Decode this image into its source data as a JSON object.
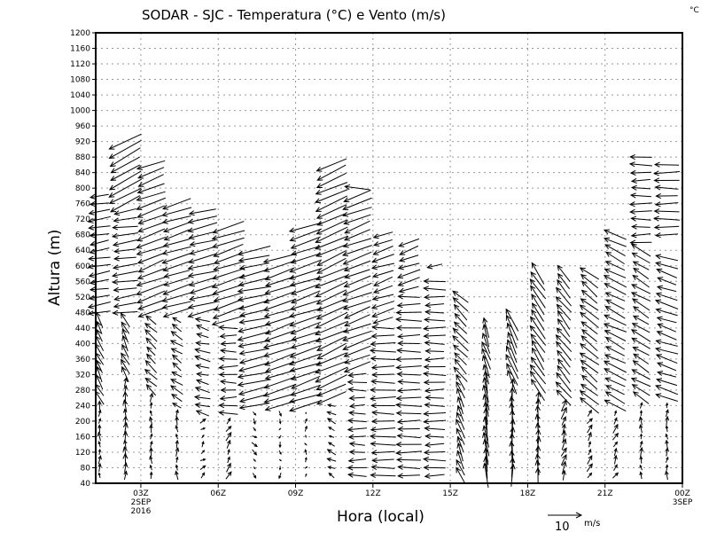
{
  "chart_data": {
    "type": "vector",
    "title": "SODAR - SJC - Temperatura (°C) e Vento (m/s)",
    "corner_unit": "°C",
    "xlabel": "Hora (local)",
    "ylabel": "Altura (m)",
    "ylim": [
      40,
      1200
    ],
    "yticks": [
      40,
      80,
      120,
      160,
      200,
      240,
      280,
      320,
      360,
      400,
      440,
      480,
      520,
      560,
      600,
      640,
      680,
      720,
      760,
      800,
      840,
      880,
      920,
      960,
      1000,
      1040,
      1080,
      1120,
      1160,
      1200
    ],
    "xlim_hours": [
      1.25,
      24.0
    ],
    "xticks": [
      {
        "hour": 3,
        "label": "03Z",
        "sub1": "2SEP",
        "sub2": "2016"
      },
      {
        "hour": 6,
        "label": "06Z"
      },
      {
        "hour": 9,
        "label": "09Z"
      },
      {
        "hour": 12,
        "label": "12Z"
      },
      {
        "hour": 15,
        "label": "15Z"
      },
      {
        "hour": 18,
        "label": "18Z"
      },
      {
        "hour": 21,
        "label": "21Z"
      },
      {
        "hour": 24,
        "label": "00Z",
        "sub1": "3SEP"
      }
    ],
    "grid": true,
    "reference_vector": {
      "value": 10,
      "label": "10",
      "unit": "m/s"
    },
    "level_step_m": 20,
    "columns": [
      {
        "hour": 1.4,
        "segments": [
          [
            60,
            240,
            0,
            2
          ],
          [
            260,
            460,
            -2,
            4
          ],
          [
            480,
            780,
            -6,
            -1
          ]
        ]
      },
      {
        "hour": 2.4,
        "segments": [
          [
            60,
            300,
            0,
            3
          ],
          [
            320,
            460,
            -2,
            4
          ],
          [
            480,
            740,
            -7,
            -1
          ],
          [
            760,
            920,
            -9,
            -5
          ]
        ]
      },
      {
        "hour": 3.4,
        "segments": [
          [
            60,
            260,
            0,
            2
          ],
          [
            280,
            460,
            -3,
            3
          ],
          [
            480,
            860,
            -8,
            -3
          ]
        ]
      },
      {
        "hour": 4.4,
        "segments": [
          [
            60,
            220,
            0,
            2
          ],
          [
            240,
            460,
            -3,
            2
          ],
          [
            480,
            760,
            -8,
            -2.5
          ]
        ]
      },
      {
        "hour": 5.4,
        "segments": [
          [
            60,
            200,
            1,
            1
          ],
          [
            220,
            460,
            -4,
            1
          ],
          [
            480,
            740,
            -8,
            -2
          ]
        ]
      },
      {
        "hour": 6.4,
        "segments": [
          [
            60,
            200,
            1,
            2
          ],
          [
            220,
            440,
            -5,
            0
          ],
          [
            460,
            700,
            -9,
            -3
          ]
        ]
      },
      {
        "hour": 7.4,
        "segments": [
          [
            60,
            220,
            1,
            -1
          ],
          [
            240,
            640,
            -9,
            -2
          ]
        ]
      },
      {
        "hour": 8.4,
        "segments": [
          [
            60,
            220,
            0,
            -1
          ],
          [
            240,
            620,
            -9,
            -3
          ]
        ]
      },
      {
        "hour": 9.4,
        "segments": [
          [
            60,
            220,
            0,
            1
          ],
          [
            240,
            700,
            -9,
            -3
          ]
        ]
      },
      {
        "hour": 10.4,
        "segments": [
          [
            60,
            240,
            -2,
            1
          ],
          [
            260,
            860,
            -9,
            -4
          ]
        ]
      },
      {
        "hour": 11.4,
        "segments": [
          [
            60,
            320,
            -5,
            0
          ],
          [
            340,
            780,
            -8,
            -3
          ],
          [
            800,
            800,
            -8,
            0.5
          ]
        ]
      },
      {
        "hour": 12.4,
        "segments": [
          [
            60,
            440,
            -7,
            0
          ],
          [
            460,
            680,
            -6,
            -2
          ]
        ]
      },
      {
        "hour": 13.4,
        "segments": [
          [
            60,
            520,
            -7,
            0
          ],
          [
            540,
            660,
            -6,
            -2
          ]
        ]
      },
      {
        "hour": 14.4,
        "segments": [
          [
            60,
            560,
            -6,
            0
          ],
          [
            600,
            600,
            -5,
            -1
          ]
        ]
      },
      {
        "hour": 15.4,
        "segments": [
          [
            60,
            300,
            -2,
            5
          ],
          [
            320,
            520,
            -4,
            4
          ]
        ]
      },
      {
        "hour": 16.4,
        "segments": [
          [
            60,
            300,
            -1,
            7
          ],
          [
            320,
            440,
            -2,
            6
          ]
        ]
      },
      {
        "hour": 17.4,
        "segments": [
          [
            60,
            280,
            0,
            6
          ],
          [
            300,
            460,
            -3,
            7
          ]
        ]
      },
      {
        "hour": 18.4,
        "segments": [
          [
            60,
            260,
            0,
            4
          ],
          [
            280,
            580,
            -4,
            6
          ]
        ]
      },
      {
        "hour": 19.4,
        "segments": [
          [
            60,
            240,
            1,
            3
          ],
          [
            260,
            580,
            -4,
            5
          ]
        ]
      },
      {
        "hour": 20.4,
        "segments": [
          [
            60,
            220,
            1,
            2
          ],
          [
            240,
            580,
            -5,
            4
          ]
        ]
      },
      {
        "hour": 21.4,
        "segments": [
          [
            60,
            220,
            1,
            2
          ],
          [
            240,
            680,
            -6,
            3
          ]
        ]
      },
      {
        "hour": 22.4,
        "segments": [
          [
            60,
            240,
            0,
            2
          ],
          [
            260,
            640,
            -5,
            3
          ],
          [
            660,
            880,
            -6,
            0
          ]
        ]
      },
      {
        "hour": 23.4,
        "segments": [
          [
            60,
            240,
            0,
            2
          ],
          [
            260,
            620,
            -6,
            2
          ],
          [
            680,
            860,
            -7,
            0
          ]
        ]
      },
      {
        "hour": 24.0,
        "segments": [
          [
            220,
            620,
            -6,
            2
          ],
          [
            700,
            860,
            -6,
            0
          ]
        ]
      }
    ]
  }
}
